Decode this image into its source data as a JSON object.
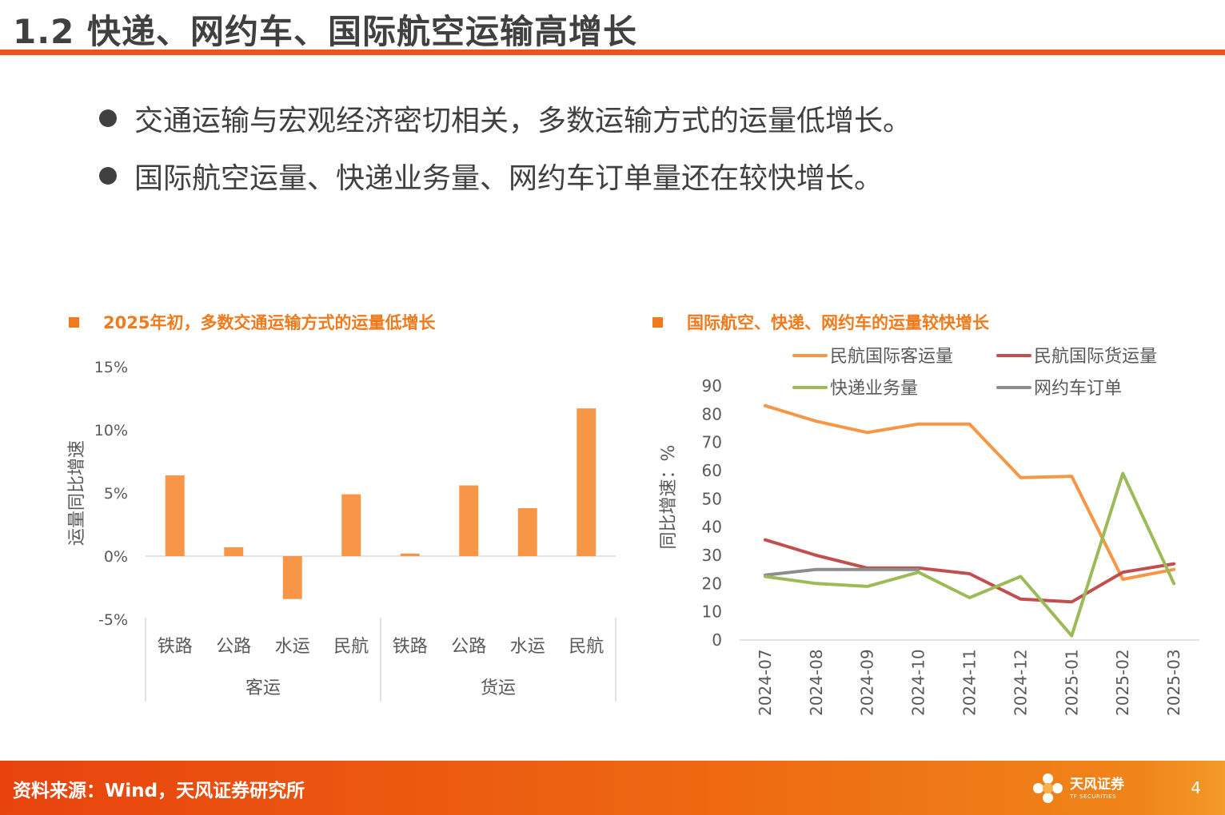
{
  "title": "1.2 快递、网约车、国际航空运输高增长",
  "bullets": [
    "交通运输与宏观经济密切相关，多数运输方式的运量低增长。",
    "国际航空运量、快递业务量、网约车订单量还在较快增长。"
  ],
  "colors": {
    "accent": "#E8541C",
    "bar": "#F79646",
    "civil_passenger": "#F79646",
    "civil_cargo": "#C0504D",
    "express": "#9BBB59",
    "ride_hailing": "#8C8C8C"
  },
  "chart_data": [
    {
      "type": "bar",
      "title": "2025年初，多数交通运输方式的运量低增长",
      "ylabel": "运量同比增速",
      "categories": [
        "铁路",
        "公路",
        "水运",
        "民航",
        "铁路",
        "公路",
        "水运",
        "民航"
      ],
      "groups": [
        {
          "label": "客运",
          "categories": [
            "铁路",
            "公路",
            "水运",
            "民航"
          ]
        },
        {
          "label": "货运",
          "categories": [
            "铁路",
            "公路",
            "水运",
            "民航"
          ]
        }
      ],
      "values": [
        6.4,
        0.7,
        -3.4,
        4.9,
        0.2,
        5.6,
        3.8,
        11.7
      ],
      "ylim": [
        -5,
        15
      ],
      "yticks": [
        "-5%",
        "0%",
        "5%",
        "10%",
        "15%"
      ],
      "grid": false
    },
    {
      "type": "line",
      "title": "国际航空、快递、网约车的运量较快增长",
      "ylabel": "同比增速：%",
      "x": [
        "2024-07",
        "2024-08",
        "2024-09",
        "2024-10",
        "2024-11",
        "2024-12",
        "2025-01",
        "2025-02",
        "2025-03"
      ],
      "ylim": [
        0,
        90
      ],
      "yticks": [
        "0",
        "10",
        "20",
        "30",
        "40",
        "50",
        "60",
        "70",
        "80",
        "90"
      ],
      "legend": "top",
      "series": [
        {
          "name": "民航国际客运量",
          "key": "civil_passenger",
          "values": [
            83,
            77.5,
            73.5,
            76.5,
            76.5,
            57.5,
            58,
            21.5,
            25
          ]
        },
        {
          "name": "民航国际货运量",
          "key": "civil_cargo",
          "values": [
            35.5,
            30,
            25.5,
            25.5,
            23.5,
            14.5,
            13.5,
            24,
            27
          ]
        },
        {
          "name": "快递业务量",
          "key": "express",
          "values": [
            22.5,
            20,
            19,
            24,
            15,
            22.5,
            1.5,
            59,
            20
          ]
        },
        {
          "name": "网约车订单",
          "key": "ride_hailing",
          "values": [
            23,
            25,
            25,
            25,
            null,
            null,
            null,
            null,
            null
          ]
        }
      ]
    }
  ],
  "footer": {
    "source": "资料来源：Wind，天风证券研究所",
    "logo_cn": "天风证券",
    "logo_en": "TF SECURITIES",
    "page": "4"
  }
}
